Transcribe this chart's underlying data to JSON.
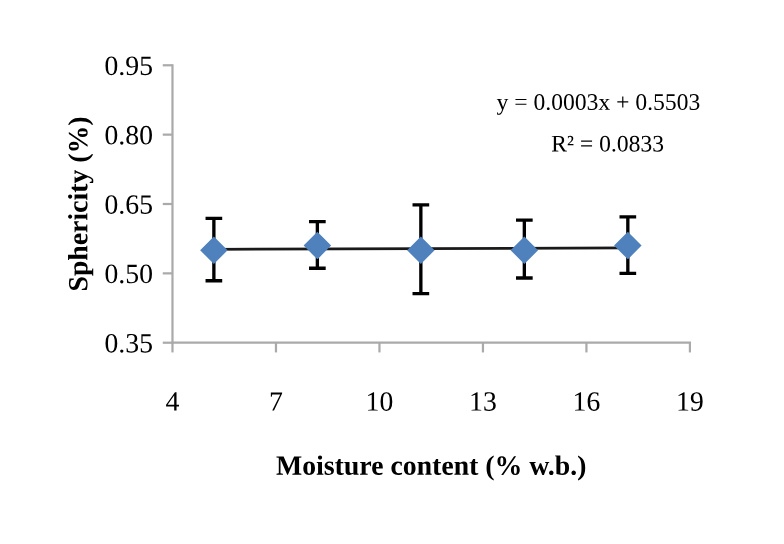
{
  "chart_data": {
    "type": "scatter",
    "xlabel": "Moisture content (% w.b.)",
    "ylabel": "Sphericity (%)",
    "xlim": [
      4,
      19
    ],
    "xticks": [
      4,
      7,
      10,
      13,
      16,
      19
    ],
    "ylim": [
      0.35,
      0.95
    ],
    "yticks": [
      0.35,
      {
        "value": 0.5,
        "label": "0.50"
      },
      0.65,
      {
        "value": 0.8,
        "label": "0.80"
      },
      0.95
    ],
    "grid": false,
    "series": [
      {
        "marker": "diamond",
        "color": "#4f81bd",
        "x": [
          5.2,
          8.2,
          11.2,
          14.2,
          17.2
        ],
        "values": [
          0.55,
          0.56,
          0.55,
          0.55,
          0.56
        ],
        "errors": [
          [
            0.484,
            0.619
          ],
          [
            0.511,
            0.612
          ],
          [
            0.456,
            0.648
          ],
          [
            0.49,
            0.615
          ],
          [
            0.5,
            0.622
          ]
        ]
      },
      {
        "type": "line",
        "marker": "none",
        "color": "#1a1a1a",
        "x": [
          5.2,
          17.2
        ],
        "values": [
          0.552,
          0.555
        ]
      }
    ],
    "annotations": [
      "y = 0.0003x + 0.5503",
      "R² = 0.0833"
    ]
  }
}
